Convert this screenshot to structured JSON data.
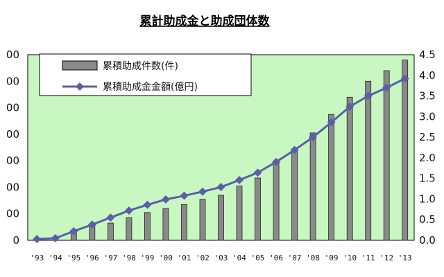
{
  "chart_data": {
    "type": "bar+line",
    "title": "累計助成金と助成団体数",
    "categories": [
      "'93",
      "'94",
      "'95",
      "'96",
      "'97",
      "'98",
      "'99",
      "'00",
      "'01",
      "'02",
      "'03",
      "'04",
      "'05",
      "'06",
      "'07",
      "'08",
      "'09",
      "'10",
      "'11",
      "'12",
      "'13"
    ],
    "left_axis": {
      "tick_labels": [
        "0",
        "00",
        "00",
        "00",
        "00",
        "00",
        "00",
        "00"
      ],
      "range": [
        0,
        7
      ]
    },
    "right_axis": {
      "tick_labels": [
        "0.0",
        "0.5",
        "1.0",
        "1.5",
        "2.0",
        "2.5",
        "3.0",
        "3.5",
        "4.0",
        "4.5"
      ],
      "range": [
        0,
        4.5
      ]
    },
    "series": [
      {
        "name": "累積助成件数(件)",
        "kind": "bar",
        "axis": "left",
        "values": [
          0,
          0,
          0.3,
          0.55,
          0.65,
          0.85,
          1.05,
          1.2,
          1.35,
          1.55,
          1.7,
          2.05,
          2.35,
          2.9,
          3.45,
          4.05,
          4.75,
          5.4,
          6.0,
          6.4,
          6.8
        ]
      },
      {
        "name": "累積助成金金額(億円)",
        "kind": "line",
        "axis": "right",
        "values": [
          0.03,
          0.05,
          0.22,
          0.38,
          0.55,
          0.72,
          0.86,
          0.99,
          1.08,
          1.18,
          1.29,
          1.46,
          1.64,
          1.9,
          2.19,
          2.5,
          2.86,
          3.24,
          3.5,
          3.7,
          3.92
        ]
      }
    ],
    "grid": false,
    "legend_position": "top-left inside",
    "colors": {
      "plot_background": "#c8f7c2",
      "bar_fill": "#8a8a8a",
      "line": "#5b5fa8",
      "marker": "#5b5fa8"
    }
  }
}
